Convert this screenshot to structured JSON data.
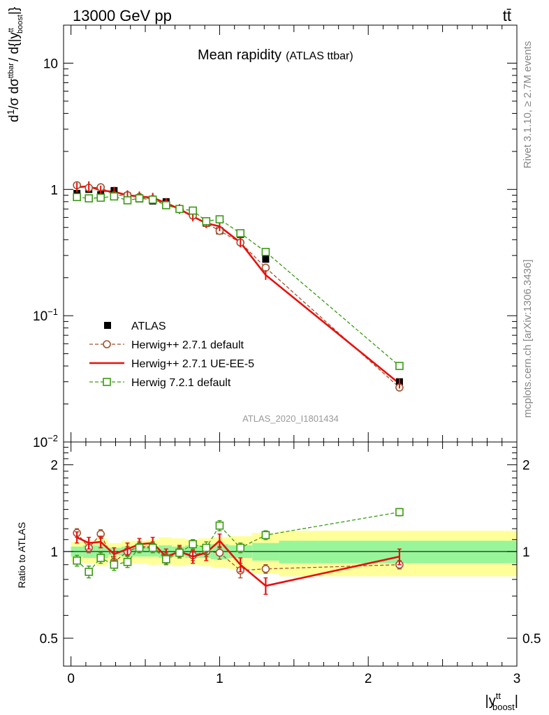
{
  "header": {
    "left": "13000 GeV pp",
    "right": "tt̄"
  },
  "side_texts": {
    "rivet": "Rivet 3.1.10, ≥ 2.7M events",
    "mcplots": "mcplots.cern.ch [arXiv:1306.3436]"
  },
  "plot_title": {
    "main": "Mean rapidity",
    "sub": "(ATLAS ttbar)"
  },
  "analysis_id": "ATLAS_2020_I1801434",
  "axes": {
    "y_main_label": "d¹/σ dσ^{ttbar} / d{|y^{tt}_boost|}",
    "y_ratio_label": "Ratio to ATLAS",
    "x_label": "|y^{tt}_boost|"
  },
  "colors": {
    "data": "#000000",
    "herwigpp_default": "#a0522d",
    "herwigpp_ueee5": "#e8100e",
    "herwig7_default": "#3a9a14",
    "band_inner": "#99f599",
    "band_outer": "#ffff99"
  },
  "chart_data": [
    {
      "type": "line",
      "panel": "main",
      "x_range": [
        -0.05,
        3.0
      ],
      "y_range": [
        0.01,
        20
      ],
      "y_scale": "log",
      "x_ticks": [
        0,
        1,
        2,
        3
      ],
      "y_tick_labels": [
        "10",
        "1",
        "10^-1",
        "10^-2"
      ],
      "legend_position": "bottom-left",
      "series": [
        {
          "name": "ATLAS",
          "style": "markers",
          "x": [
            0.04,
            0.12,
            0.2,
            0.29,
            0.38,
            0.46,
            0.55,
            0.64,
            0.73,
            0.82,
            0.91,
            1.0,
            1.14,
            1.31,
            2.21
          ],
          "y": [
            0.93,
            1.0,
            0.91,
            0.98,
            0.89,
            0.84,
            0.81,
            0.8,
            0.7,
            0.64,
            0.54,
            0.47,
            0.44,
            0.28,
            0.03
          ]
        },
        {
          "name": "Herwig++ 2.7.1 default",
          "style": "dashed-circles",
          "x": [
            0.04,
            0.12,
            0.2,
            0.29,
            0.38,
            0.46,
            0.55,
            0.64,
            0.73,
            0.82,
            0.91,
            1.0,
            1.14,
            1.31,
            2.21
          ],
          "y": [
            1.08,
            1.03,
            1.04,
            0.9,
            0.9,
            0.87,
            0.84,
            0.76,
            0.7,
            0.62,
            0.54,
            0.47,
            0.38,
            0.24,
            0.027
          ]
        },
        {
          "name": "Herwig++ 2.7.1 UE-EE-5",
          "style": "solid",
          "x": [
            0.04,
            0.12,
            0.2,
            0.29,
            0.38,
            0.46,
            0.55,
            0.64,
            0.73,
            0.82,
            0.91,
            1.0,
            1.14,
            1.31,
            2.21
          ],
          "y": [
            1.04,
            1.06,
            0.98,
            0.96,
            0.9,
            0.88,
            0.86,
            0.78,
            0.7,
            0.61,
            0.54,
            0.51,
            0.38,
            0.21,
            0.029
          ]
        },
        {
          "name": "Herwig 7.2.1 default",
          "style": "dashed-squares",
          "x": [
            0.04,
            0.12,
            0.2,
            0.29,
            0.38,
            0.46,
            0.55,
            0.64,
            0.73,
            0.82,
            0.91,
            1.0,
            1.14,
            1.31,
            2.21
          ],
          "y": [
            0.87,
            0.85,
            0.86,
            0.88,
            0.82,
            0.85,
            0.83,
            0.75,
            0.7,
            0.68,
            0.56,
            0.58,
            0.45,
            0.32,
            0.04
          ]
        }
      ]
    },
    {
      "type": "line",
      "panel": "ratio",
      "x_range": [
        -0.05,
        3.0
      ],
      "y_range": [
        0.4,
        2.4
      ],
      "y_scale": "log",
      "x_ticks": [
        0,
        1,
        2,
        3
      ],
      "y_tick_labels": [
        "0.5",
        "1",
        "2"
      ],
      "reference_band": {
        "edges": [
          0.0,
          0.08,
          0.17,
          0.25,
          0.34,
          0.42,
          0.51,
          0.59,
          0.68,
          0.77,
          0.86,
          0.94,
          1.06,
          1.22,
          1.4,
          3.0
        ],
        "inner_low": [
          0.96,
          0.95,
          0.95,
          0.97,
          0.96,
          0.96,
          0.96,
          0.95,
          0.96,
          0.95,
          0.95,
          0.94,
          0.95,
          0.93,
          0.91
        ],
        "inner_high": [
          1.04,
          1.05,
          1.05,
          1.03,
          1.04,
          1.04,
          1.04,
          1.05,
          1.04,
          1.05,
          1.05,
          1.06,
          1.05,
          1.07,
          1.09
        ],
        "outer_low": [
          0.92,
          0.91,
          0.89,
          0.93,
          0.91,
          0.91,
          0.9,
          0.9,
          0.89,
          0.9,
          0.89,
          0.88,
          0.87,
          0.84,
          0.82
        ],
        "outer_high": [
          1.08,
          1.09,
          1.11,
          1.07,
          1.09,
          1.09,
          1.1,
          1.12,
          1.11,
          1.1,
          1.11,
          1.12,
          1.13,
          1.16,
          1.18
        ]
      },
      "series": [
        {
          "name": "Herwig++ 2.7.1 default",
          "x": [
            0.04,
            0.12,
            0.2,
            0.29,
            0.38,
            0.46,
            0.55,
            0.64,
            0.73,
            0.82,
            0.91,
            1.0,
            1.14,
            1.31,
            2.21
          ],
          "y": [
            1.16,
            1.03,
            1.15,
            0.92,
            1.0,
            1.04,
            1.04,
            0.95,
            1.0,
            0.97,
            1.0,
            0.99,
            0.86,
            0.87,
            0.9
          ],
          "err": [
            0.04,
            0.04,
            0.04,
            0.04,
            0.04,
            0.04,
            0.04,
            0.04,
            0.04,
            0.04,
            0.04,
            0.05,
            0.05,
            0.03,
            0.03
          ]
        },
        {
          "name": "Herwig++ 2.7.1 UE-EE-5",
          "x": [
            0.04,
            0.12,
            0.2,
            0.29,
            0.38,
            0.46,
            0.55,
            0.64,
            0.73,
            0.82,
            0.91,
            1.0,
            1.14,
            1.31,
            2.21
          ],
          "y": [
            1.12,
            1.07,
            1.08,
            0.98,
            1.02,
            1.06,
            1.07,
            0.96,
            1.0,
            0.96,
            0.99,
            1.09,
            0.9,
            0.76,
            0.96
          ],
          "err": [
            0.05,
            0.05,
            0.05,
            0.05,
            0.05,
            0.05,
            0.05,
            0.06,
            0.05,
            0.05,
            0.06,
            0.06,
            0.05,
            0.05,
            0.06
          ]
        },
        {
          "name": "Herwig 7.2.1 default",
          "x": [
            0.04,
            0.12,
            0.2,
            0.29,
            0.38,
            0.46,
            0.55,
            0.64,
            0.73,
            0.82,
            0.91,
            1.0,
            1.14,
            1.31,
            2.21
          ],
          "y": [
            0.93,
            0.85,
            0.95,
            0.9,
            0.92,
            1.03,
            1.03,
            0.94,
            0.99,
            1.06,
            1.03,
            1.23,
            1.03,
            1.14,
            1.37
          ],
          "err": [
            0.04,
            0.04,
            0.04,
            0.04,
            0.04,
            0.04,
            0.04,
            0.04,
            0.04,
            0.04,
            0.05,
            0.05,
            0.04,
            0.04,
            0.04
          ]
        }
      ]
    }
  ]
}
